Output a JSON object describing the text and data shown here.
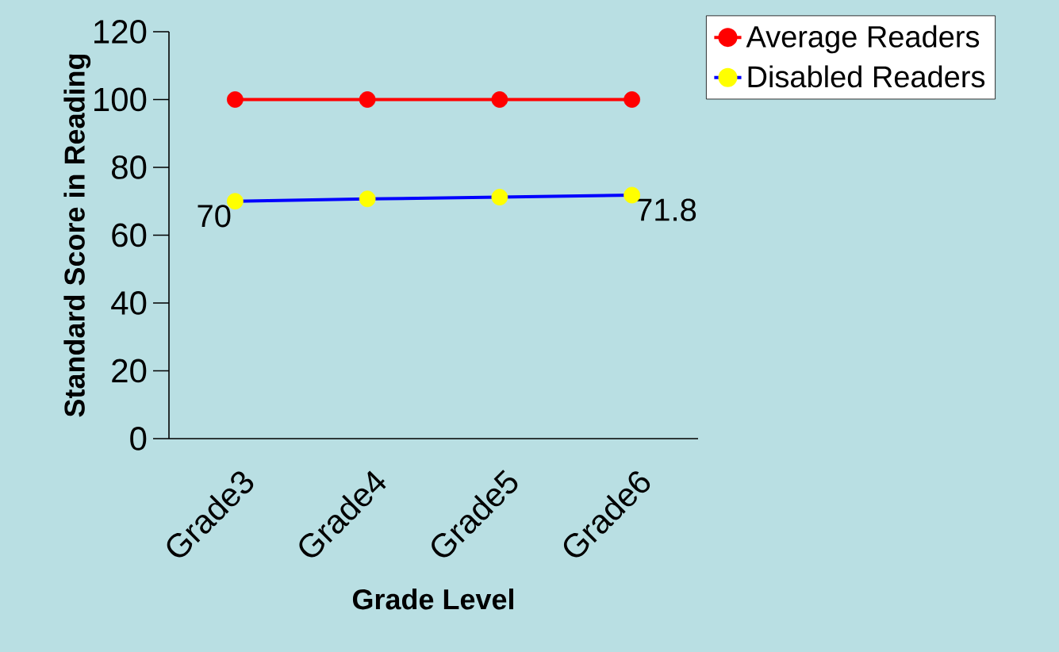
{
  "chart_data": {
    "type": "line",
    "xlabel": "Grade Level",
    "ylabel": "Standard Score in Reading",
    "categories": [
      "Grade3",
      "Grade4",
      "Grade5",
      "Grade6"
    ],
    "series": [
      {
        "name": "Average Readers",
        "color": "#ff0000",
        "values": [
          100,
          100,
          100,
          100
        ]
      },
      {
        "name": "Disabled Readers",
        "color": "#0000ff",
        "colors": [
          "#ffff00",
          "#ffff00",
          "#ffff00",
          "#ffff00"
        ],
        "values": [
          70,
          70.7,
          71.2,
          71.8
        ],
        "value_labels": [
          "70",
          null,
          null,
          "71.8"
        ]
      }
    ],
    "ylim": [
      0,
      120
    ],
    "yticks": [
      0,
      20,
      40,
      60,
      80,
      100,
      120
    ],
    "marker": "circle",
    "line_style": "solid",
    "legend": "top right",
    "grid": false
  }
}
